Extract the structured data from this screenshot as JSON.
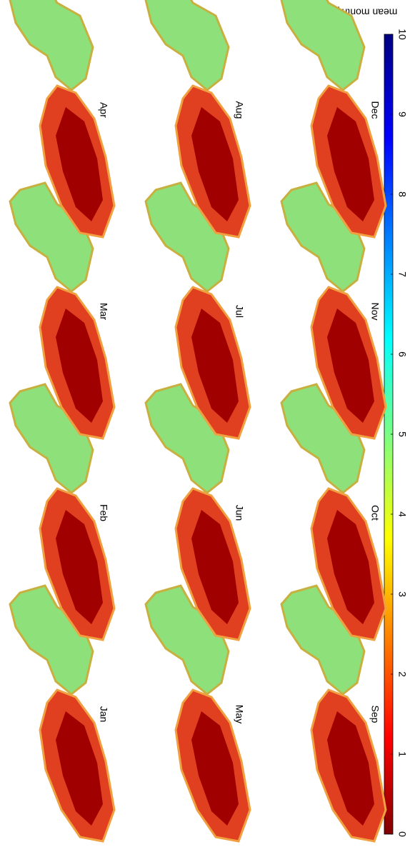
{
  "colorbar": {
    "label": "mean monthly LAI",
    "lim": [
      0,
      10
    ],
    "ticks": [
      0,
      1,
      2,
      3,
      4,
      5,
      6,
      7,
      8,
      9,
      10
    ]
  },
  "panels": [
    {
      "label": "Jan"
    },
    {
      "label": "Feb"
    },
    {
      "label": "Mar"
    },
    {
      "label": "Apr"
    },
    {
      "label": "May"
    },
    {
      "label": "Jun"
    },
    {
      "label": "Jul"
    },
    {
      "label": "Aug"
    },
    {
      "label": "Sep"
    },
    {
      "label": "Oct"
    },
    {
      "label": "Nov"
    },
    {
      "label": "Dec"
    }
  ]
}
